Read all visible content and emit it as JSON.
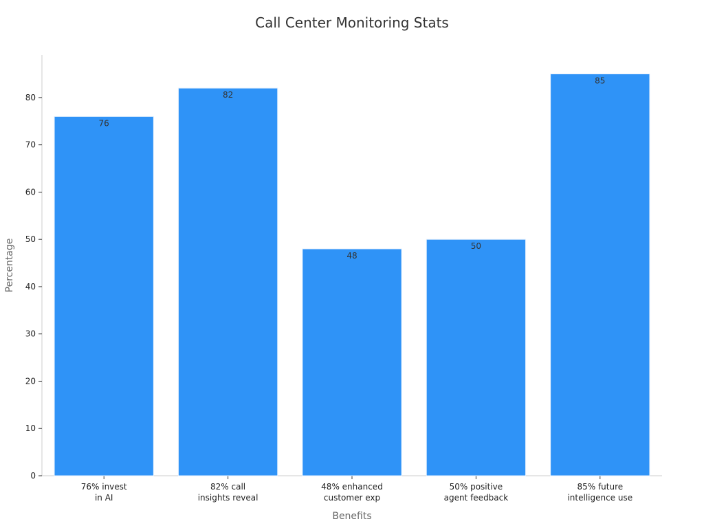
{
  "chart_data": {
    "type": "bar",
    "title": "Call Center Monitoring Stats",
    "xlabel": "Benefits",
    "ylabel": "Percentage",
    "categories": [
      [
        "76% invest",
        "in AI"
      ],
      [
        "82% call",
        "insights reveal"
      ],
      [
        "48% enhanced",
        "customer exp"
      ],
      [
        "50% positive",
        "agent feedback"
      ],
      [
        "85% future",
        "intelligence use"
      ]
    ],
    "values": [
      76,
      82,
      48,
      50,
      85
    ],
    "data_labels": [
      "76",
      "82",
      "48",
      "50",
      "85"
    ],
    "yticks": [
      0,
      10,
      20,
      30,
      40,
      50,
      60,
      70,
      80
    ],
    "ylim": [
      0,
      89
    ],
    "bar_color": "#2f93f7",
    "grid": false,
    "legend": "none"
  }
}
